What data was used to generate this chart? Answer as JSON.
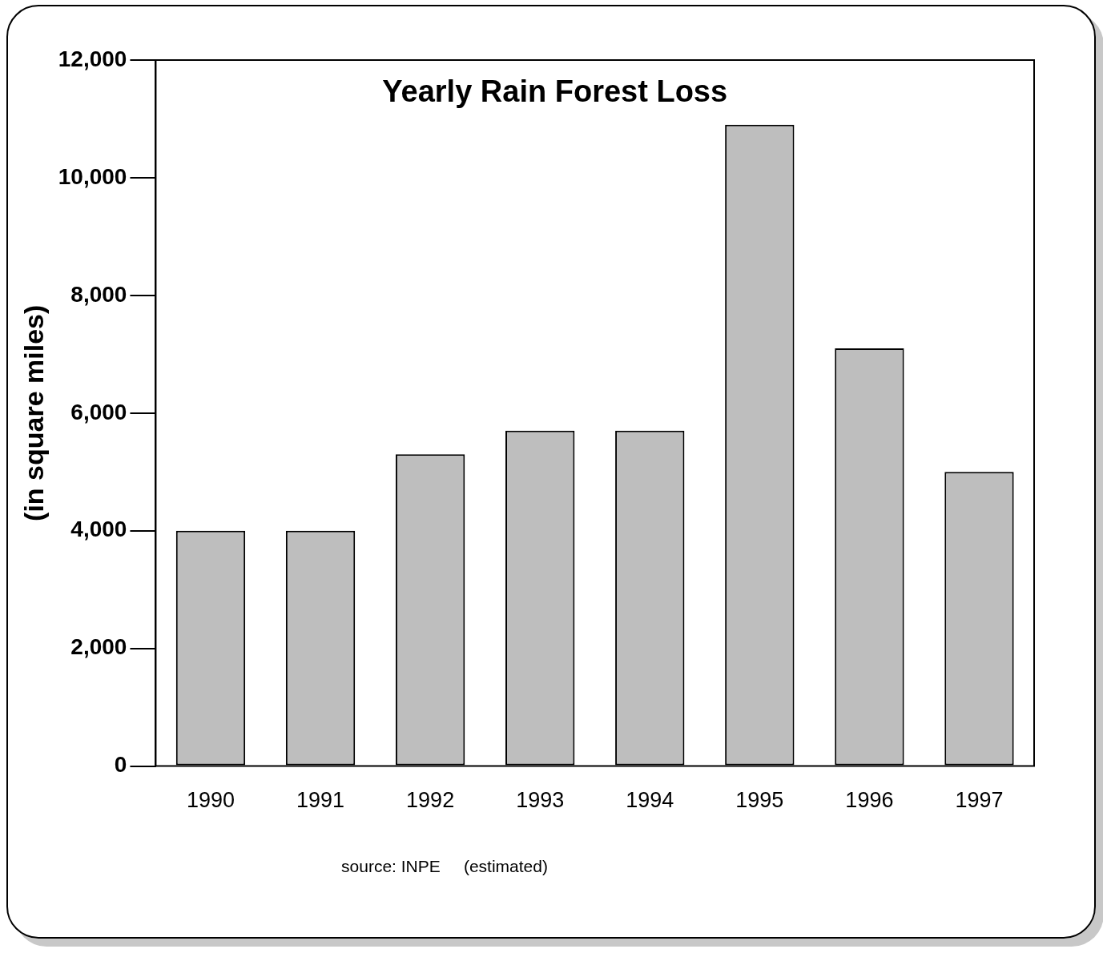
{
  "chart_data": {
    "type": "bar",
    "title": "Yearly Rain Forest Loss",
    "ylabel": "(in square miles)",
    "categories": [
      "1990",
      "1991",
      "1992",
      "1993",
      "1994",
      "1995",
      "1996",
      "1997"
    ],
    "values": [
      4000,
      4000,
      5300,
      5700,
      5700,
      10900,
      7100,
      5000
    ],
    "color": "#bebebe",
    "ylim": [
      0,
      12000
    ],
    "yticks": [
      {
        "value": 0,
        "label": "0"
      },
      {
        "value": 2000,
        "label": "2,000"
      },
      {
        "value": 4000,
        "label": "4,000"
      },
      {
        "value": 6000,
        "label": "6,000"
      },
      {
        "value": 8000,
        "label": "8,000"
      },
      {
        "value": 10000,
        "label": "10,000"
      },
      {
        "value": 12000,
        "label": "12,000"
      }
    ],
    "annotations": [
      "source: INPE     (estimated)"
    ]
  }
}
